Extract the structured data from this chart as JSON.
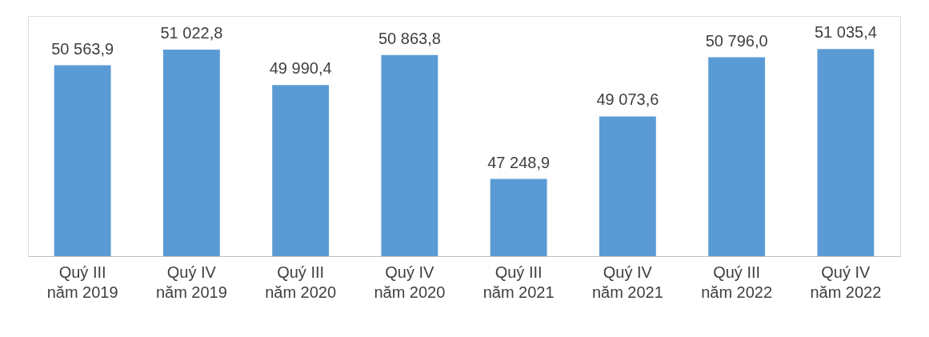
{
  "chart_data": {
    "type": "bar",
    "categories": [
      "Quý III\nnăm 2019",
      "Quý IV\nnăm 2019",
      "Quý III\nnăm 2020",
      "Quý IV\nnăm 2020",
      "Quý III\nnăm 2021",
      "Quý IV\nnăm 2021",
      "Quý III\nnăm 2022",
      "Quý IV\nnăm 2022"
    ],
    "values": [
      50563.9,
      51022.8,
      49990.4,
      50863.8,
      47248.9,
      49073.6,
      50796.0,
      51035.4
    ],
    "value_labels": [
      "50 563,9",
      "51 022,8",
      "49 990,4",
      "50 863,8",
      "47 248,9",
      "49 073,6",
      "50 796,0",
      "51 035,4"
    ],
    "color": "#5b9bd5",
    "ylim": [
      45000,
      52000
    ],
    "tick_labels": "x",
    "grid": false
  }
}
